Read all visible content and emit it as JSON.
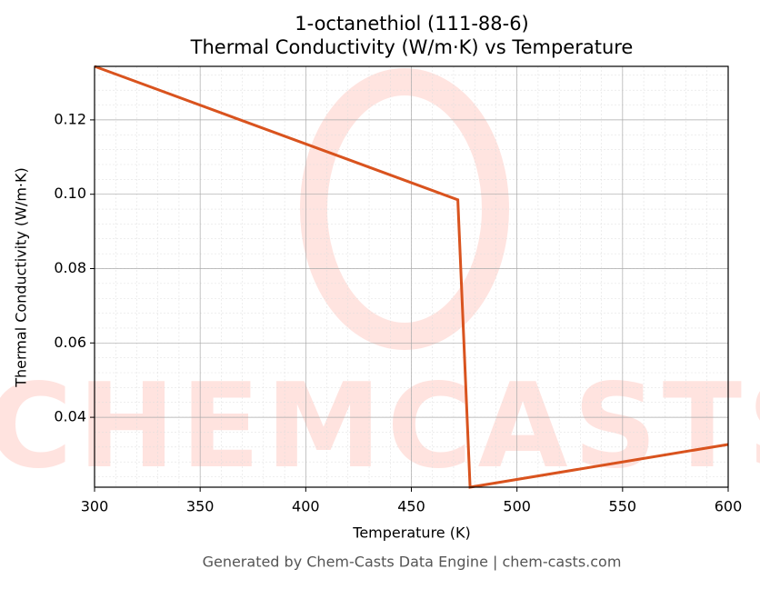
{
  "chart_data": {
    "type": "line",
    "title": "1-octanethiol (111-88-6)",
    "subtitle": "Thermal Conductivity (W/m·K) vs Temperature",
    "x_label": "Temperature (K)",
    "y_label": "Thermal Conductivity (W/m·K)",
    "footer": "Generated by Chem-Casts Data Engine | chem-casts.com",
    "watermark": "CHEMCASTS",
    "x": [
      300,
      472,
      477.8,
      600
    ],
    "series": [
      {
        "name": "Thermal Conductivity",
        "color": "#d9531e",
        "values": [
          0.1344,
          0.0985,
          0.0212,
          0.0327
        ]
      }
    ],
    "xlim": [
      300,
      600
    ],
    "xticks": [
      300,
      350,
      400,
      450,
      500,
      550,
      600
    ],
    "ylim": [
      0.0212,
      0.1344
    ],
    "yticks": [
      0.04,
      0.06,
      0.08,
      {
        "value": 0.1,
        "label": "0.10"
      },
      0.12
    ],
    "grid": true
  }
}
